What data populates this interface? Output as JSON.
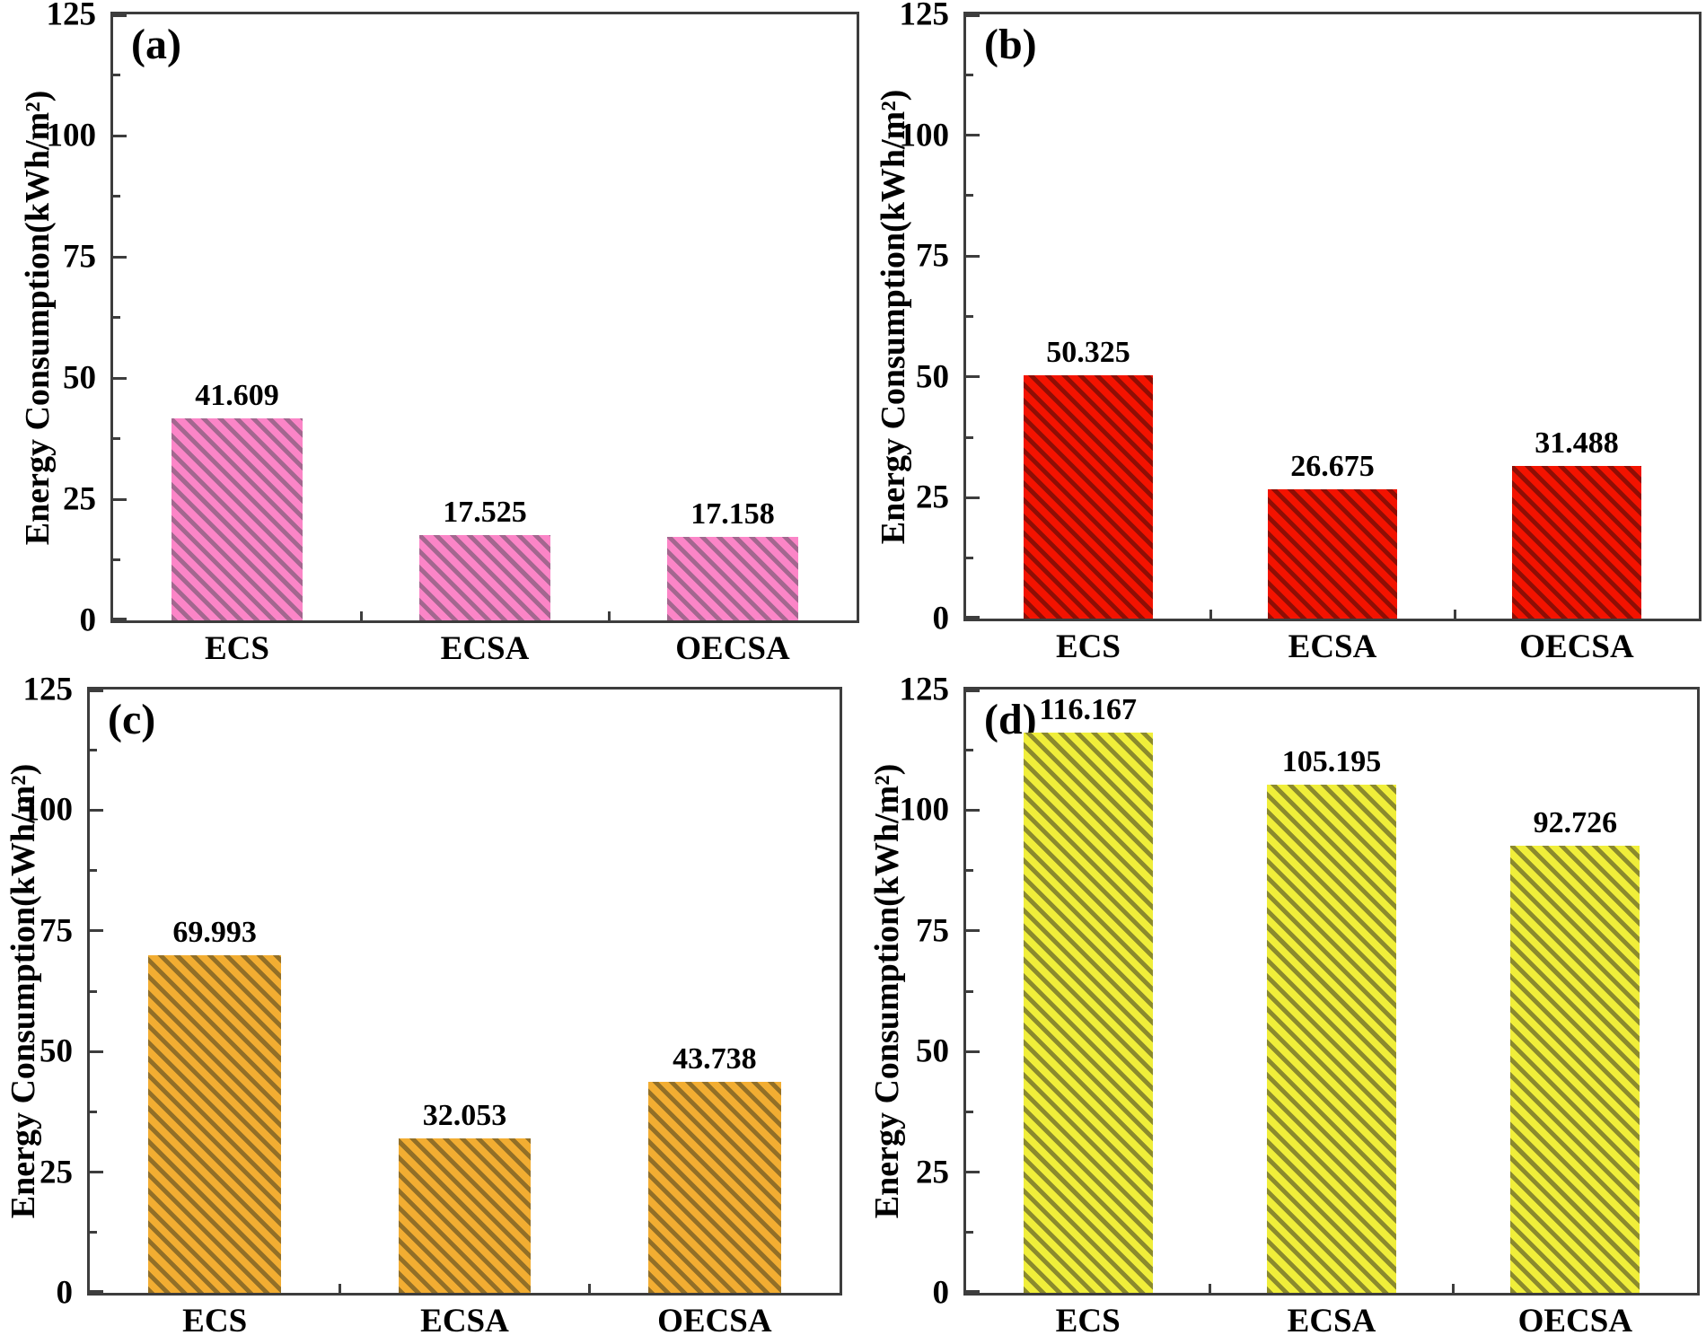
{
  "figure": {
    "background": "#ffffff",
    "axis_color": "#3d3d3d",
    "text_color": "#000000"
  },
  "chart_data": [
    {
      "type": "bar",
      "panel_label": "(a)",
      "title": "",
      "xlabel": "",
      "ylabel": "Energy Consumption(kWh/m²)",
      "categories": [
        "ECS",
        "ECSA",
        "OECSA"
      ],
      "values": [
        41.609,
        17.525,
        17.158
      ],
      "value_labels": [
        "41.609",
        "17.525",
        "17.158"
      ],
      "ylim": [
        0,
        125
      ],
      "yticks": [
        "0",
        "25",
        "50",
        "75",
        "100",
        "125"
      ],
      "ytick_values": [
        0,
        25,
        50,
        75,
        100,
        125
      ],
      "yticks_minor": [
        12.5,
        37.5,
        62.5,
        87.5,
        112.5
      ],
      "grid": "off",
      "legend": "none",
      "bar_color": "#fb85c7",
      "hatch_color": "#a3678f",
      "hatch": "\\"
    },
    {
      "type": "bar",
      "panel_label": "(b)",
      "title": "",
      "xlabel": "",
      "ylabel": "Energy Consumption(kWh/m²)",
      "categories": [
        "ECS",
        "ECSA",
        "OECSA"
      ],
      "values": [
        50.325,
        26.675,
        31.488
      ],
      "value_labels": [
        "50.325",
        "26.675",
        "31.488"
      ],
      "ylim": [
        0,
        125
      ],
      "yticks": [
        "0",
        "25",
        "50",
        "75",
        "100",
        "125"
      ],
      "ytick_values": [
        0,
        25,
        50,
        75,
        100,
        125
      ],
      "yticks_minor": [
        12.5,
        37.5,
        62.5,
        87.5,
        112.5
      ],
      "grid": "off",
      "legend": "none",
      "bar_color": "#f31300",
      "hatch_color": "#8e0e05",
      "hatch": "\\"
    },
    {
      "type": "bar",
      "panel_label": "(c)",
      "title": "",
      "xlabel": "",
      "ylabel": "Energy Consumption(kWh/m²)",
      "categories": [
        "ECS",
        "ECSA",
        "OECSA"
      ],
      "values": [
        69.993,
        32.053,
        43.738
      ],
      "value_labels": [
        "69.993",
        "32.053",
        "43.738"
      ],
      "ylim": [
        0,
        125
      ],
      "yticks": [
        "0",
        "25",
        "50",
        "75",
        "100",
        "125"
      ],
      "ytick_values": [
        0,
        25,
        50,
        75,
        100,
        125
      ],
      "yticks_minor": [
        12.5,
        37.5,
        62.5,
        87.5,
        112.5
      ],
      "grid": "off",
      "legend": "none",
      "bar_color": "#f2ad32",
      "hatch_color": "#926f27",
      "hatch": "\\"
    },
    {
      "type": "bar",
      "panel_label": "(d)",
      "title": "",
      "xlabel": "",
      "ylabel": "Energy Consumption(kWh/m²)",
      "categories": [
        "ECS",
        "ECSA",
        "OECSA"
      ],
      "values": [
        116.167,
        105.195,
        92.726
      ],
      "value_labels": [
        "116.167",
        "105.195",
        "92.726"
      ],
      "ylim": [
        0,
        125
      ],
      "yticks": [
        "0",
        "25",
        "50",
        "75",
        "100",
        "125"
      ],
      "ytick_values": [
        0,
        25,
        50,
        75,
        100,
        125
      ],
      "yticks_minor": [
        12.5,
        37.5,
        62.5,
        87.5,
        112.5
      ],
      "grid": "off",
      "legend": "none",
      "bar_color": "#f0ee3a",
      "hatch_color": "#8b8a2d",
      "hatch": "\\"
    }
  ]
}
